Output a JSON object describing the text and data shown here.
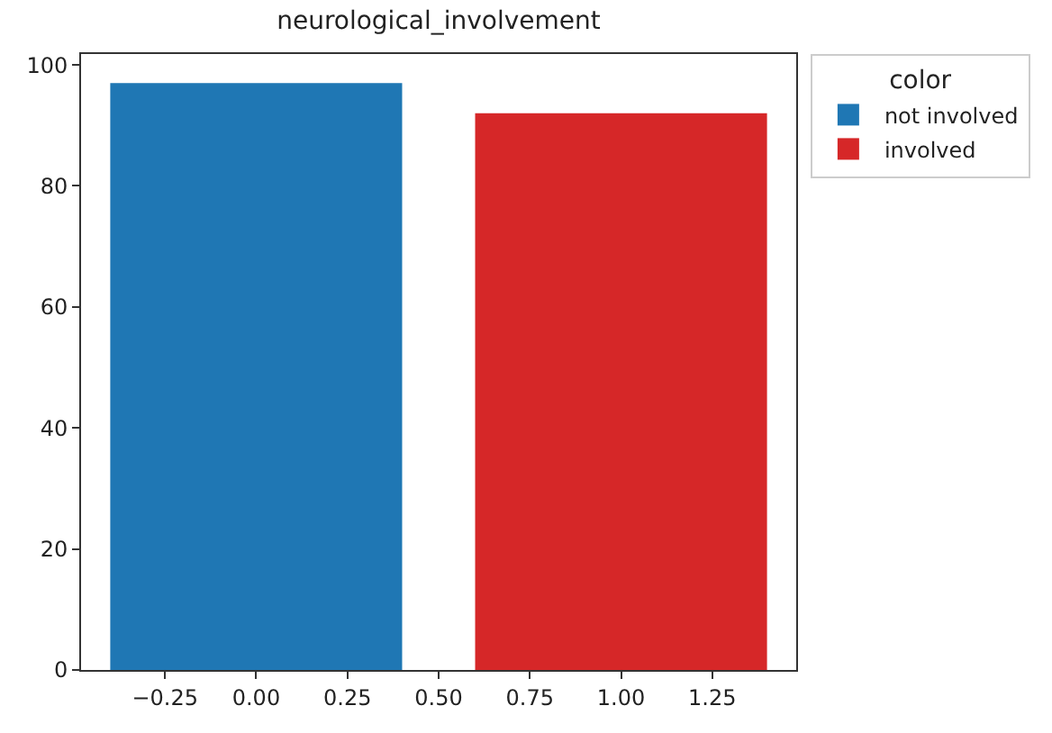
{
  "chart_data": {
    "type": "bar",
    "title": "neurological_involvement",
    "legend_title": "color",
    "series": [
      {
        "name": "not involved",
        "color": "#1f77b4",
        "x": [
          0
        ],
        "values": [
          97
        ]
      },
      {
        "name": "involved",
        "color": "#d62728",
        "x": [
          1
        ],
        "values": [
          92
        ]
      }
    ],
    "xlim": [
      -0.48,
      1.48
    ],
    "xticks": [
      {
        "value": -0.25,
        "label": "−0.25"
      },
      {
        "value": 0,
        "label": "0.00"
      },
      {
        "value": 0.25,
        "label": "0.25"
      },
      {
        "value": 0.5,
        "label": "0.50"
      },
      {
        "value": 0.75,
        "label": "0.75"
      },
      {
        "value": 1,
        "label": "1.00"
      },
      {
        "value": 1.25,
        "label": "1.25"
      }
    ],
    "ylim": [
      0,
      101.8
    ],
    "yticks": [
      0,
      20,
      40,
      60,
      80,
      100
    ],
    "grid": false,
    "legend": "top right"
  }
}
